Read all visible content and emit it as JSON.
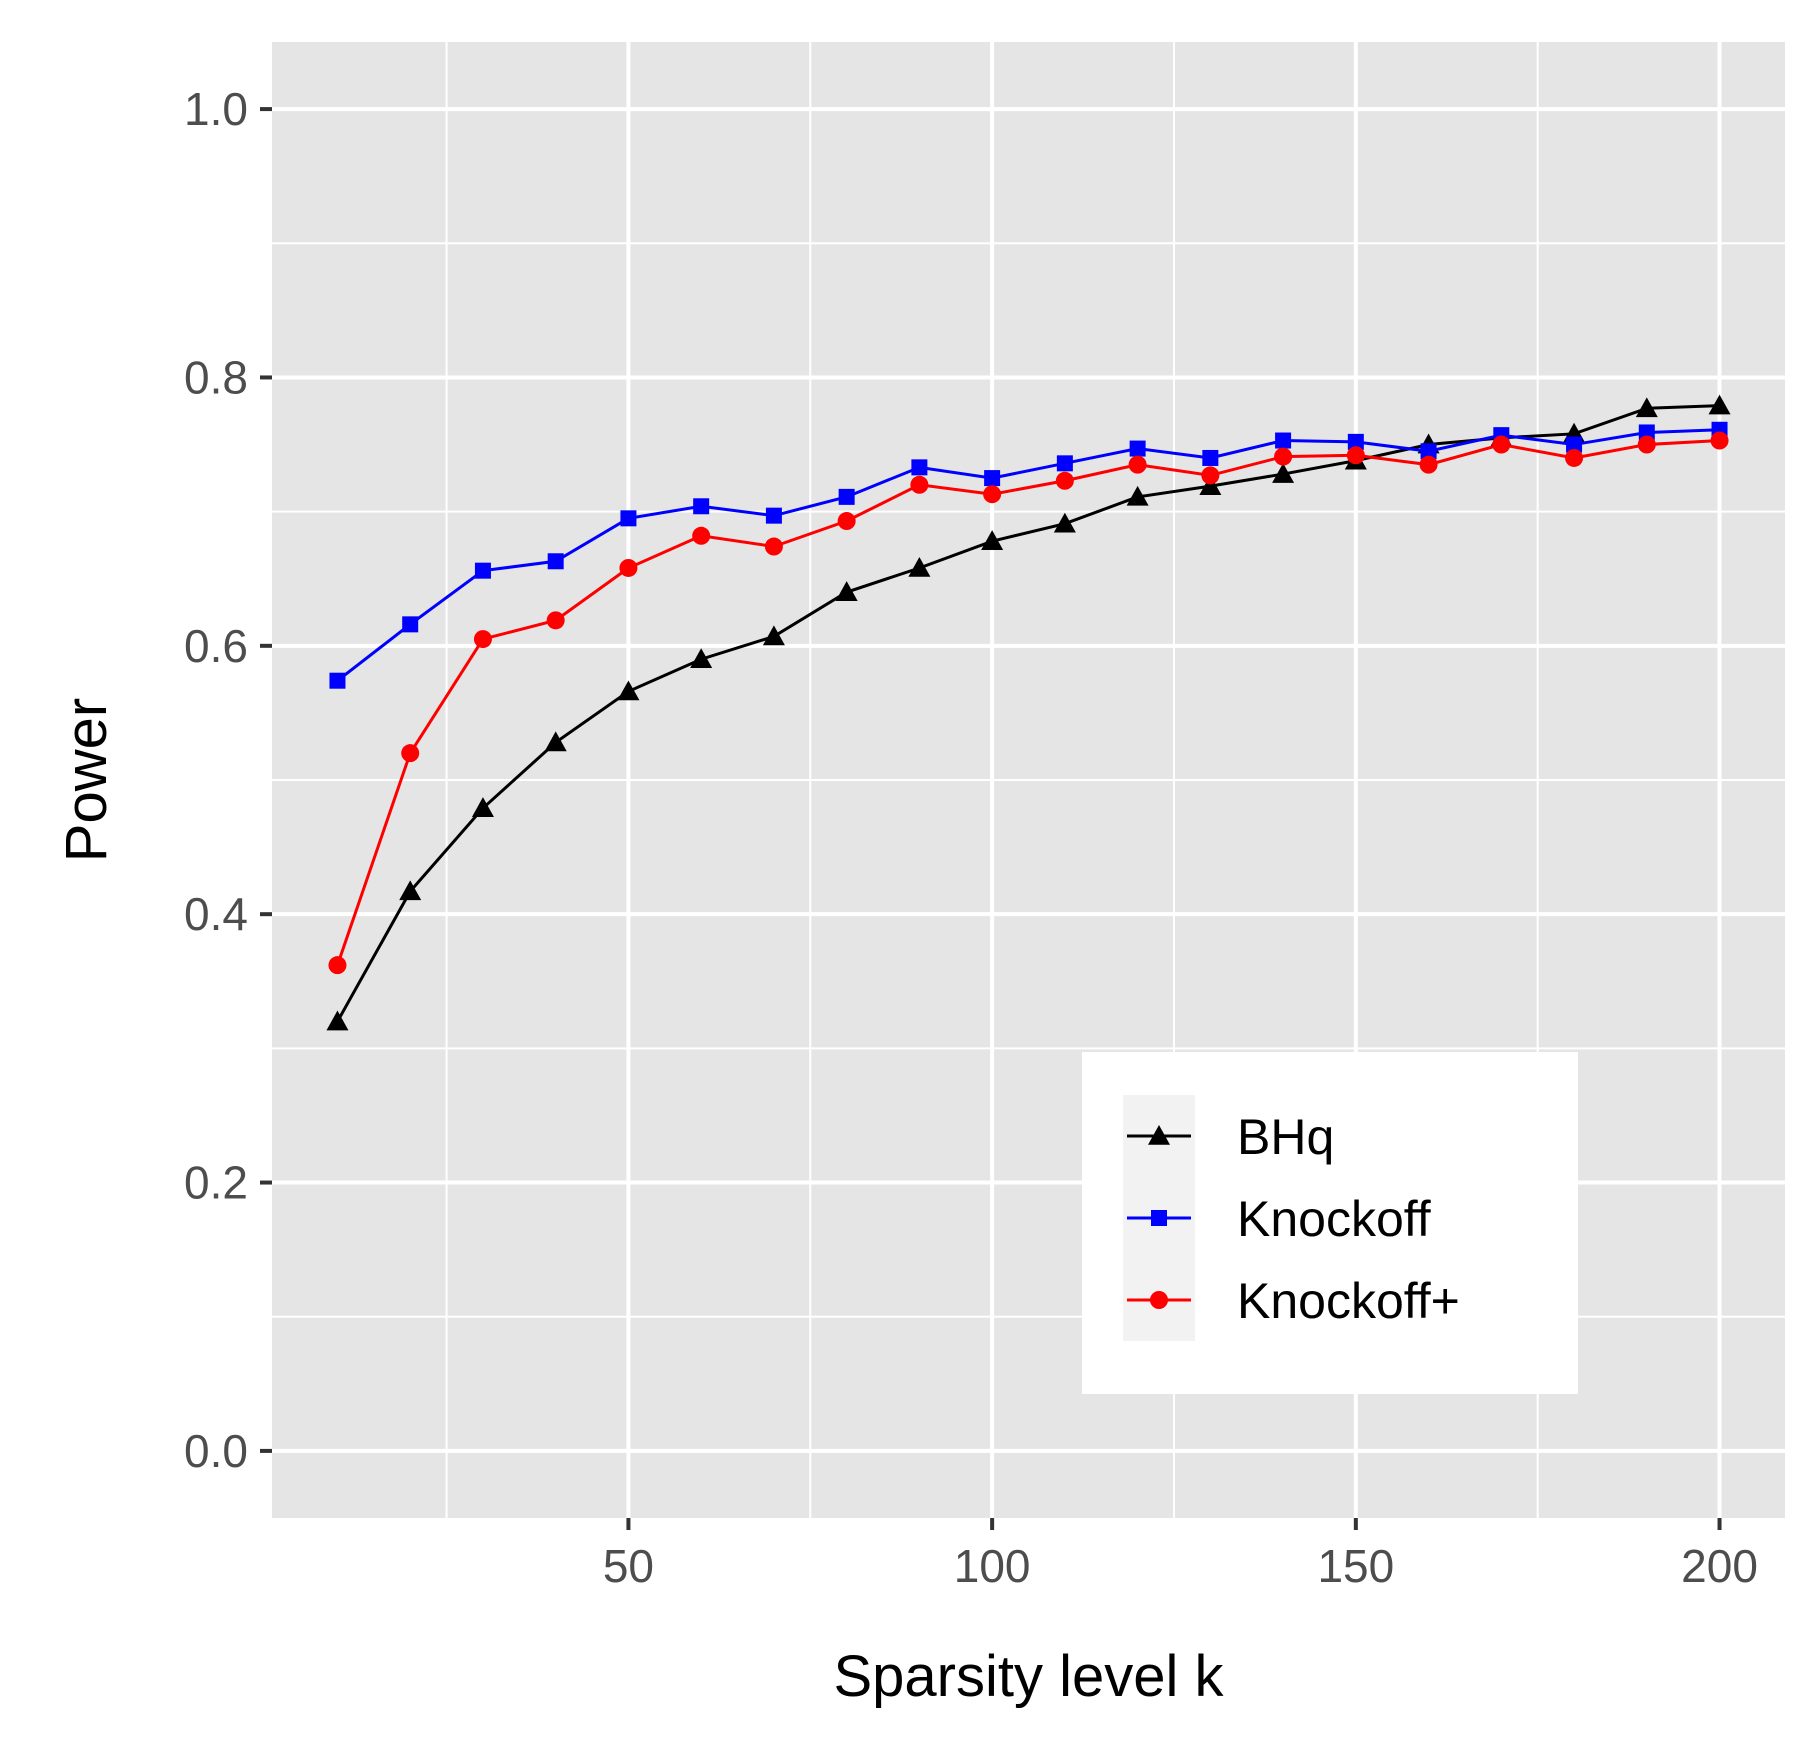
{
  "chart_data": {
    "type": "line",
    "title": "",
    "xlabel": "Sparsity level k",
    "ylabel": "Power",
    "xlim": [
      1,
      209
    ],
    "ylim": [
      -0.05,
      1.05
    ],
    "x_ticks": [
      50,
      100,
      150,
      200
    ],
    "x_tick_labels": [
      "50",
      "100",
      "150",
      "200"
    ],
    "x_minor_ticks": [
      25,
      75,
      125,
      175
    ],
    "y_ticks": [
      0.0,
      0.2,
      0.4,
      0.6,
      0.8,
      1.0
    ],
    "y_tick_labels": [
      "0.0",
      "0.2",
      "0.4",
      "0.6",
      "0.8",
      "1.0"
    ],
    "y_minor_ticks": [
      0.1,
      0.3,
      0.5,
      0.7,
      0.9
    ],
    "grid": true,
    "panel_background": "#e5e5e5",
    "legend": {
      "position": "bottom-right"
    },
    "x": [
      10,
      20,
      30,
      40,
      50,
      60,
      70,
      80,
      90,
      100,
      110,
      120,
      130,
      140,
      150,
      160,
      170,
      180,
      190,
      200
    ],
    "series": [
      {
        "name": "BHq",
        "color": "#000000",
        "marker": "triangle",
        "values": [
          0.32,
          0.417,
          0.479,
          0.528,
          0.566,
          0.59,
          0.607,
          0.64,
          0.658,
          0.678,
          0.691,
          0.711,
          0.719,
          0.728,
          0.738,
          0.75,
          0.755,
          0.758,
          0.777,
          0.779
        ]
      },
      {
        "name": "Knockoff",
        "color": "#0000ff",
        "marker": "square",
        "values": [
          0.574,
          0.616,
          0.656,
          0.663,
          0.695,
          0.704,
          0.697,
          0.711,
          0.733,
          0.725,
          0.736,
          0.747,
          0.74,
          0.753,
          0.752,
          0.745,
          0.757,
          0.75,
          0.759,
          0.761
        ]
      },
      {
        "name": "Knockoff+",
        "color": "#ff0000",
        "marker": "circle",
        "values": [
          0.362,
          0.52,
          0.605,
          0.619,
          0.658,
          0.682,
          0.674,
          0.693,
          0.72,
          0.713,
          0.723,
          0.735,
          0.727,
          0.741,
          0.742,
          0.735,
          0.75,
          0.74,
          0.75,
          0.753
        ]
      }
    ]
  }
}
